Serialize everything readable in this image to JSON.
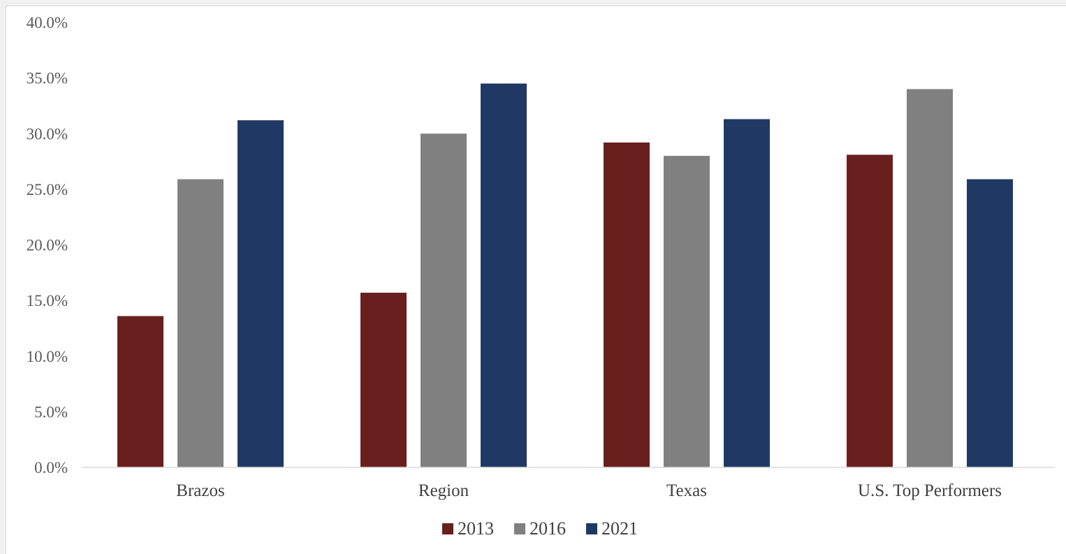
{
  "chart_data": {
    "type": "bar",
    "title": "",
    "xlabel": "",
    "ylabel": "",
    "categories": [
      "Brazos",
      "Region",
      "Texas",
      "U.S. Top Performers"
    ],
    "series": [
      {
        "name": "2013",
        "color": "#6a1f1f",
        "values": [
          13.6,
          15.7,
          29.2,
          28.1
        ]
      },
      {
        "name": "2016",
        "color": "#808080",
        "values": [
          25.9,
          30.0,
          28.0,
          34.0
        ]
      },
      {
        "name": "2021",
        "color": "#203864",
        "values": [
          31.2,
          34.5,
          31.3,
          25.9
        ]
      }
    ],
    "ylim": [
      0,
      40
    ],
    "yticks": [
      "0.0%",
      "5.0%",
      "10.0%",
      "15.0%",
      "20.0%",
      "25.0%",
      "30.0%",
      "35.0%",
      "40.0%"
    ],
    "grid": false,
    "legend_position": "bottom"
  }
}
